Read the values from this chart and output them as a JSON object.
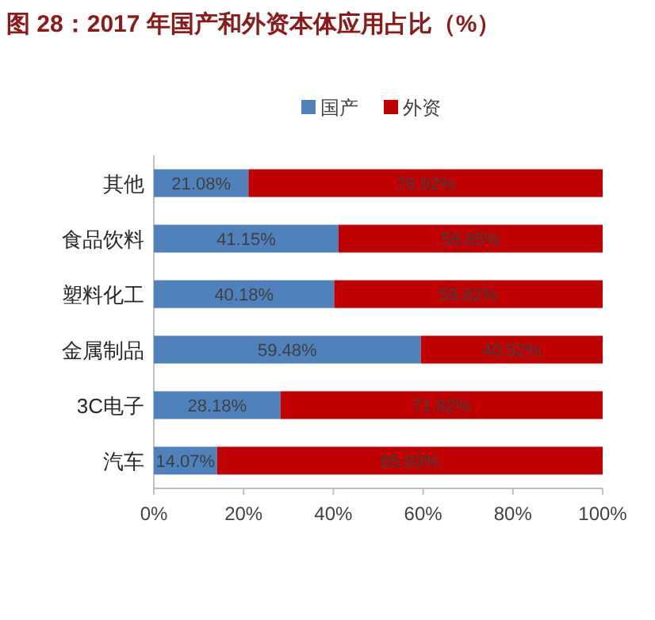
{
  "chart_data": {
    "type": "bar",
    "orientation": "horizontal",
    "stacked": true,
    "title": "图 28：2017 年国产和外资本体应用占比（%）",
    "categories": [
      "其他",
      "食品饮料",
      "塑料化工",
      "金属制品",
      "3C电子",
      "汽车"
    ],
    "series": [
      {
        "name": "国产",
        "color": "#4f81bd",
        "values": [
          21.08,
          41.15,
          40.18,
          59.48,
          28.18,
          14.07
        ],
        "value_labels": [
          "21.08%",
          "41.15%",
          "40.18%",
          "59.48%",
          "28.18%",
          "14.07%"
        ]
      },
      {
        "name": "外资",
        "color": "#c00000",
        "values": [
          78.92,
          58.85,
          59.82,
          40.52,
          71.82,
          85.93
        ],
        "value_labels": [
          "78.92%",
          "58.85%",
          "59.82%",
          "40.52%",
          "71.82%",
          "85.93%"
        ]
      }
    ],
    "xlim": [
      0,
      100
    ],
    "xticks": [
      {
        "value": 0,
        "label": "0%"
      },
      {
        "value": 20,
        "label": "20%"
      },
      {
        "value": 40,
        "label": "40%"
      },
      {
        "value": 60,
        "label": "60%"
      },
      {
        "value": 80,
        "label": "80%"
      },
      {
        "value": 100,
        "label": "100%"
      }
    ],
    "legend": "top",
    "grid": false
  }
}
